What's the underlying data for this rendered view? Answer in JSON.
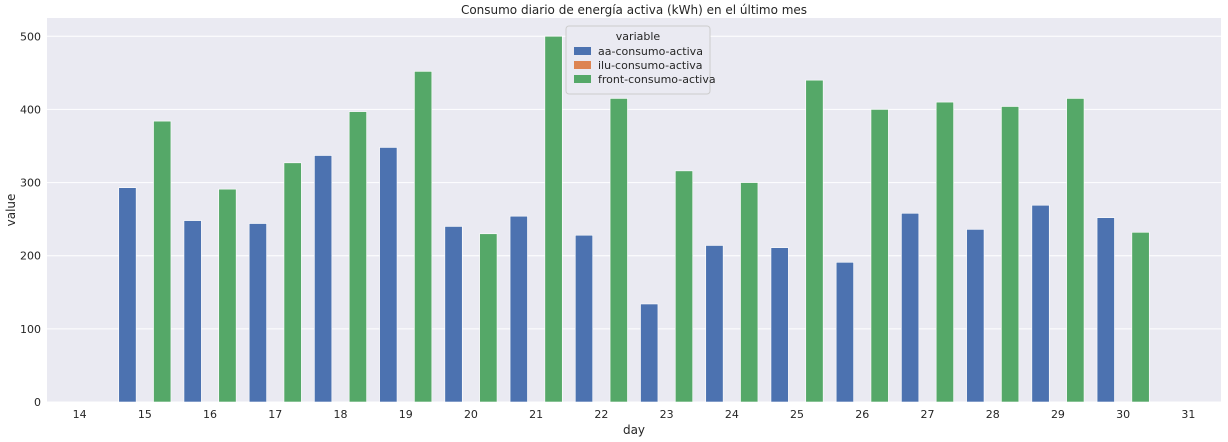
{
  "chart_data": {
    "type": "bar",
    "title": "Consumo diario de energía activa (kWh) en el último mes",
    "xlabel": "day",
    "ylabel": "value",
    "ylim": [
      0,
      525
    ],
    "yticks": [
      0,
      100,
      200,
      300,
      400,
      500
    ],
    "grid": true,
    "legend": {
      "title": "variable",
      "placement": "top-center"
    },
    "categories": [
      "14",
      "15",
      "16",
      "17",
      "18",
      "19",
      "20",
      "21",
      "22",
      "23",
      "24",
      "25",
      "26",
      "27",
      "28",
      "29",
      "30",
      "31"
    ],
    "series": [
      {
        "name": "aa-consumo-activa",
        "color": "#4c72b0",
        "values": [
          0,
          293,
          248,
          244,
          337,
          348,
          240,
          254,
          228,
          134,
          214,
          211,
          191,
          258,
          236,
          269,
          252,
          0
        ]
      },
      {
        "name": "ilu-consumo-activa",
        "color": "#dd8452",
        "values": [
          0,
          0,
          0,
          0,
          0,
          0,
          0,
          0,
          0,
          0,
          0,
          0,
          0,
          0,
          0,
          0,
          0,
          0
        ]
      },
      {
        "name": "front-consumo-activa",
        "color": "#55a868",
        "values": [
          0,
          384,
          291,
          327,
          397,
          452,
          230,
          500,
          415,
          316,
          300,
          440,
          400,
          410,
          404,
          415,
          232,
          0
        ]
      }
    ]
  },
  "theme": {
    "plot_background": "#eaeaf2",
    "grid_color": "#ffffff"
  }
}
